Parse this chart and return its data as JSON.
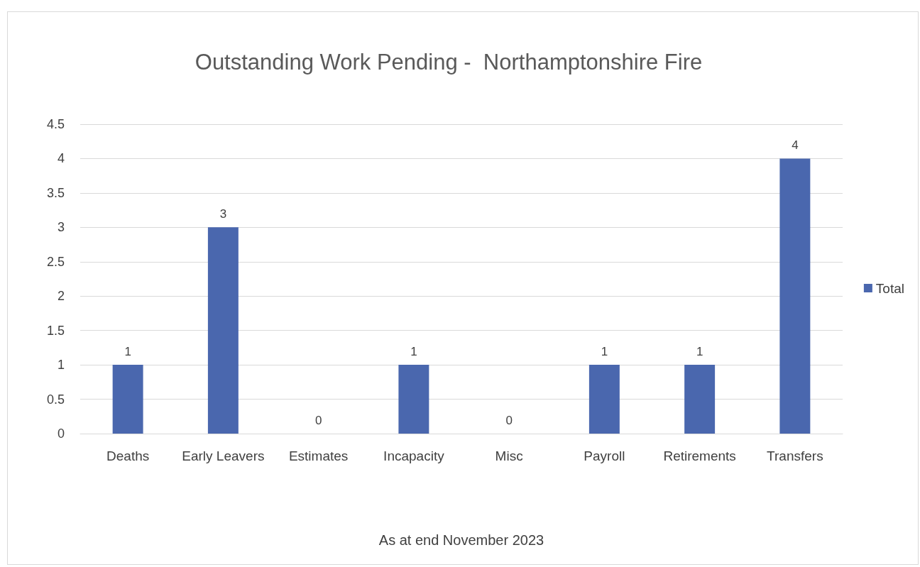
{
  "chart_data": {
    "type": "bar",
    "title": "Outstanding Work Pending -  Northamptonshire Fire",
    "xlabel": "As at end November 2023",
    "categories": [
      "Deaths",
      "Early Leavers",
      "Estimates",
      "Incapacity",
      "Misc",
      "Payroll",
      "Retirements",
      "Transfers"
    ],
    "series": [
      {
        "name": "Total",
        "color": "#4a67ae",
        "values": [
          1,
          3,
          0,
          1,
          0,
          1,
          1,
          4
        ]
      }
    ],
    "ylim": [
      0,
      4.5
    ],
    "yticks": [
      0,
      0.5,
      1,
      1.5,
      2,
      2.5,
      3,
      3.5,
      4,
      4.5
    ],
    "grid": "y",
    "legend": "right",
    "data_labels": true
  }
}
